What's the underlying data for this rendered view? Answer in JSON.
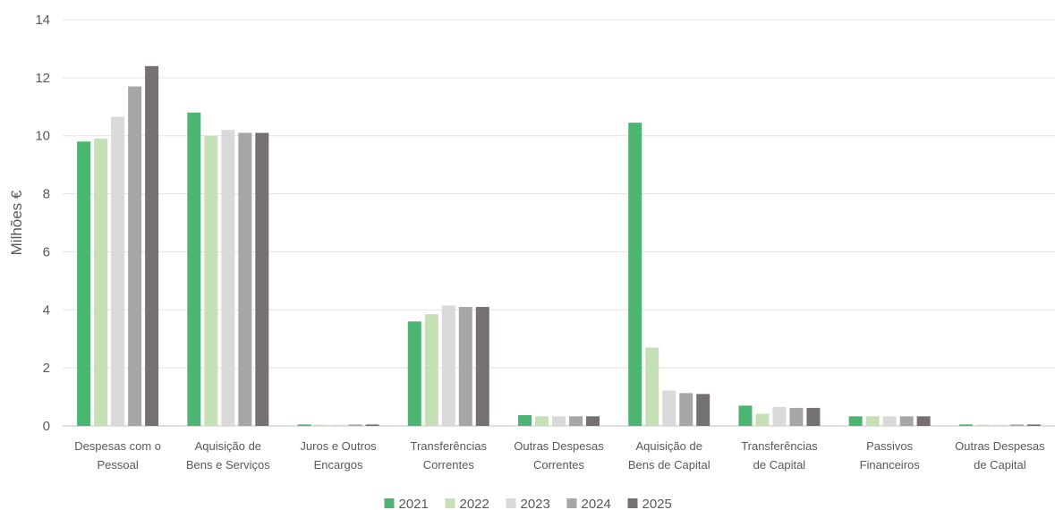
{
  "chart_data": {
    "type": "bar",
    "ylabel": "Milhões €",
    "ylim": [
      0,
      14
    ],
    "yticks": [
      0,
      2,
      4,
      6,
      8,
      10,
      12,
      14
    ],
    "grid": true,
    "legend_position": "bottom",
    "categories": [
      [
        "Despesas com o",
        "Pessoal"
      ],
      [
        "Aquisição de",
        "Bens e Serviços"
      ],
      [
        "Juros e Outros",
        "Encargos"
      ],
      [
        "Transferências",
        "Correntes"
      ],
      [
        "Outras Despesas",
        "Correntes"
      ],
      [
        "Aquisição de",
        "Bens de Capital"
      ],
      [
        "Transferências",
        "de Capital"
      ],
      [
        "Passivos",
        "Financeiros"
      ],
      [
        "Outras Despesas",
        "de Capital"
      ]
    ],
    "series": [
      {
        "name": "2021",
        "color": "#4CB571",
        "values": [
          9.8,
          10.8,
          0.05,
          3.6,
          0.37,
          10.45,
          0.7,
          0.33,
          0.05
        ]
      },
      {
        "name": "2022",
        "color": "#C5E0B4",
        "values": [
          9.9,
          10.0,
          0.04,
          3.85,
          0.33,
          2.7,
          0.42,
          0.33,
          0.04
        ]
      },
      {
        "name": "2023",
        "color": "#D9D9D9",
        "values": [
          10.65,
          10.2,
          0.04,
          4.15,
          0.33,
          1.22,
          0.65,
          0.33,
          0.04
        ]
      },
      {
        "name": "2024",
        "color": "#A6A6A6",
        "values": [
          11.7,
          10.1,
          0.05,
          4.1,
          0.33,
          1.13,
          0.62,
          0.33,
          0.05
        ]
      },
      {
        "name": "2025",
        "color": "#767171",
        "values": [
          12.4,
          10.1,
          0.05,
          4.1,
          0.33,
          1.1,
          0.62,
          0.33,
          0.05
        ]
      }
    ]
  }
}
